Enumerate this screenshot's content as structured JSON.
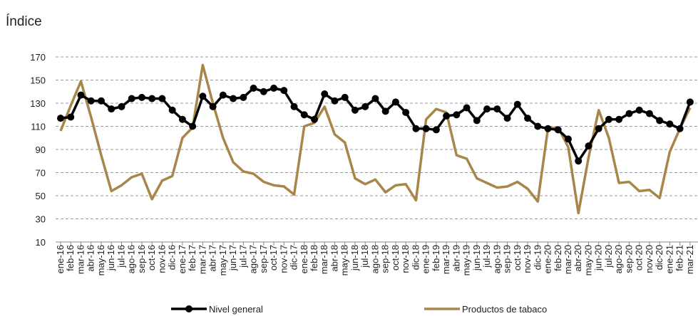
{
  "chart_data": {
    "type": "line",
    "title": "Índice",
    "categories": [
      "ene-16",
      "feb-16",
      "mar-16",
      "abr-16",
      "may-16",
      "jun-16",
      "jul-16",
      "ago-16",
      "sep-16",
      "oct-16",
      "nov-16",
      "dic-16",
      "ene-17",
      "feb-17",
      "mar-17",
      "abr-17",
      "may-17",
      "jun-17",
      "jul-17",
      "ago-17",
      "sep-17",
      "oct-17",
      "nov-17",
      "dic-17",
      "ene-18",
      "feb-18",
      "mar-18",
      "abr-18",
      "may-18",
      "jun-18",
      "jul-18",
      "ago-18",
      "sep-18",
      "oct-18",
      "nov-18",
      "dic-18",
      "ene-19",
      "feb-19",
      "mar-19",
      "abr-19",
      "may-19",
      "jun-19",
      "jul-19",
      "ago-19",
      "sep-19",
      "oct-19",
      "nov-19",
      "dic-19",
      "ene-20",
      "feb-20",
      "mar-20",
      "abr-20",
      "may-20",
      "jun-20",
      "jul-20",
      "ago-20",
      "sep-20",
      "oct-20",
      "nov-20",
      "dic-20",
      "ene-21",
      "feb-21",
      "mar-21"
    ],
    "series": [
      {
        "name": "Nivel general",
        "color": "#000000",
        "markers": true,
        "values": [
          117,
          118,
          137,
          132,
          132,
          125,
          127,
          134,
          135,
          134,
          134,
          124,
          116,
          110,
          136,
          127,
          137,
          134,
          135,
          143,
          140,
          143,
          141,
          127,
          120,
          116,
          138,
          132,
          135,
          124,
          127,
          134,
          123,
          131,
          122,
          108,
          108,
          107,
          119,
          120,
          126,
          115,
          125,
          125,
          117,
          129,
          117,
          110,
          108,
          107,
          99,
          80,
          93,
          108,
          116,
          116,
          121,
          124,
          121,
          115,
          112,
          108,
          131
        ]
      },
      {
        "name": "Productos de tabaco",
        "color": "#a8864a",
        "markers": false,
        "values": [
          106,
          128,
          149,
          118,
          85,
          54,
          59,
          66,
          69,
          47,
          63,
          67,
          100,
          109,
          163,
          130,
          100,
          79,
          71,
          69,
          62,
          59,
          58,
          51,
          110,
          113,
          127,
          103,
          96,
          65,
          60,
          64,
          53,
          59,
          60,
          46,
          116,
          125,
          122,
          85,
          82,
          65,
          61,
          57,
          58,
          62,
          56,
          45,
          108,
          109,
          92,
          35,
          83,
          124,
          100,
          61,
          62,
          54,
          55,
          48,
          88,
          108,
          126
        ]
      }
    ],
    "ylim": [
      10,
      170
    ],
    "yticks": [
      10,
      30,
      50,
      70,
      90,
      110,
      130,
      150,
      170
    ],
    "grid": true
  }
}
